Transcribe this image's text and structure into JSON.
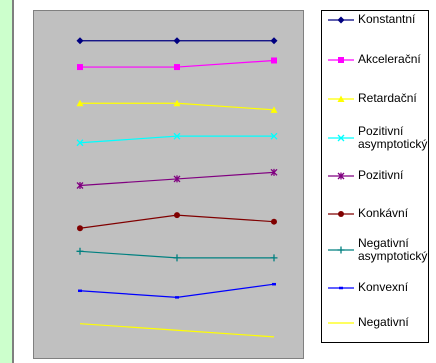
{
  "chart_data": {
    "type": "line",
    "title": "",
    "xlabel": "",
    "ylabel": "",
    "categories": [
      "",
      "",
      ""
    ],
    "ylim": [
      0,
      10
    ],
    "grid": false,
    "legend": "right",
    "series": [
      {
        "name": "Konstantní",
        "values": [
          9.4,
          9.4,
          9.4
        ],
        "color": "#000080",
        "marker": "diamond"
      },
      {
        "name": "Akcelerační",
        "values": [
          8.6,
          8.6,
          8.8
        ],
        "color": "#ff00ff",
        "marker": "square"
      },
      {
        "name": "Retardační",
        "values": [
          7.5,
          7.5,
          7.3
        ],
        "color": "#ffff00",
        "marker": "triangle"
      },
      {
        "name": "Pozitivní\nasymptotický",
        "values": [
          6.3,
          6.5,
          6.5
        ],
        "color": "#00ffff",
        "marker": "x"
      },
      {
        "name": "Pozitivní",
        "values": [
          5.0,
          5.2,
          5.4
        ],
        "color": "#800080",
        "marker": "star"
      },
      {
        "name": "Konkávní",
        "values": [
          3.7,
          4.1,
          3.9
        ],
        "color": "#800000",
        "marker": "circle"
      },
      {
        "name": "Negativní\nasymptotický",
        "values": [
          3.0,
          2.8,
          2.8
        ],
        "color": "#008080",
        "marker": "plus"
      },
      {
        "name": "Konvexní",
        "values": [
          1.8,
          1.6,
          2.0
        ],
        "color": "#0000ff",
        "marker": "dash"
      },
      {
        "name": "Negativní",
        "values": [
          0.8,
          0.6,
          0.4
        ],
        "color": "#ffff00",
        "marker": "none"
      }
    ]
  }
}
